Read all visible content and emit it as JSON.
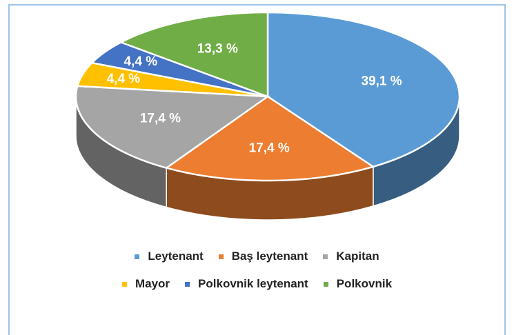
{
  "chart_data": {
    "type": "pie3d",
    "categories": [
      "Leytenant",
      "Baş leytenant",
      "Kapitan",
      "Mayor",
      "Polkovnik leytenant",
      "Polkovnik"
    ],
    "values": [
      39.1,
      17.4,
      17.4,
      4.4,
      4.4,
      13.3
    ],
    "value_labels": [
      "39,1 %",
      "17,4 %",
      "17,4 %",
      "4,4 %",
      "4,4 %",
      "13,3 %"
    ],
    "colors": [
      "#5b9bd5",
      "#ed7d31",
      "#a5a5a5",
      "#ffc000",
      "#4472c4",
      "#70ad47"
    ],
    "legend": "bottom"
  }
}
